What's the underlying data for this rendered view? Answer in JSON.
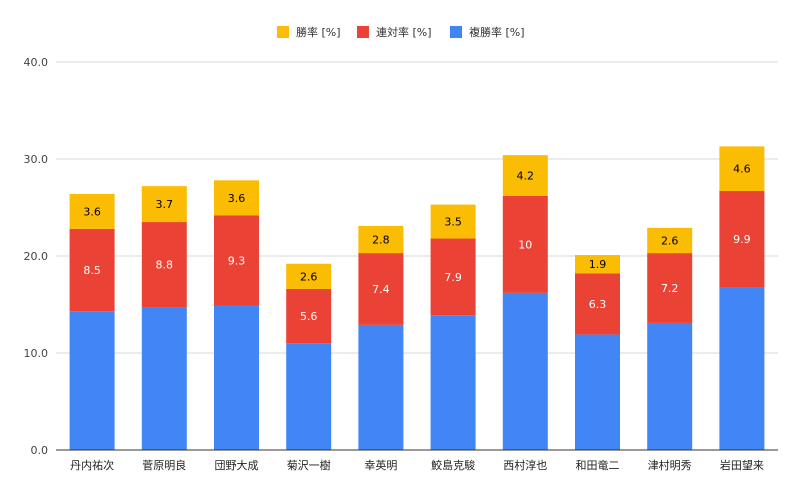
{
  "chart_data": {
    "type": "bar",
    "stacked": true,
    "title": "",
    "xlabel": "",
    "ylabel": "",
    "ylim": [
      0,
      40
    ],
    "yticks": [
      "0.0",
      "10.0",
      "20.0",
      "30.0",
      "40.0"
    ],
    "grid": true,
    "legend_position": "top-center",
    "categories": [
      "丹内祐次",
      "菅原明良",
      "団野大成",
      "菊沢一樹",
      "幸英明",
      "鮫島克駿",
      "西村淳也",
      "和田竜二",
      "津村明秀",
      "岩田望来"
    ],
    "series": [
      {
        "name": "複勝率 [%]",
        "color": "#4285f4",
        "labels_shown": false,
        "values": [
          14.3,
          14.7,
          14.9,
          11.0,
          12.9,
          13.9,
          16.2,
          11.9,
          13.1,
          16.8
        ]
      },
      {
        "name": "連対率 [%]",
        "color": "#ea4335",
        "labels_shown": true,
        "label_color": "#ffffff",
        "values": [
          8.5,
          8.8,
          9.3,
          5.6,
          7.4,
          7.9,
          10.0,
          6.3,
          7.2,
          9.9
        ]
      },
      {
        "name": "勝率 [%]",
        "color": "#fbbc04",
        "labels_shown": true,
        "label_color": "#000000",
        "values": [
          3.6,
          3.7,
          3.6,
          2.6,
          2.8,
          3.5,
          4.2,
          1.9,
          2.6,
          4.6
        ]
      }
    ],
    "legend_order": [
      "勝率 [%]",
      "連対率 [%]",
      "複勝率 [%]"
    ]
  }
}
